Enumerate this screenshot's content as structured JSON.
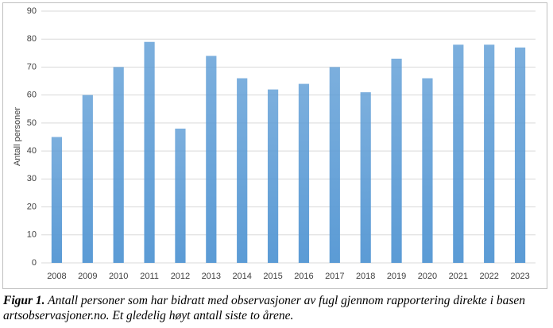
{
  "chart_data": {
    "type": "bar",
    "y_label": "Antall personer",
    "categories": [
      "2008",
      "2009",
      "2010",
      "2011",
      "2012",
      "2013",
      "2014",
      "2015",
      "2016",
      "2017",
      "2018",
      "2019",
      "2020",
      "2021",
      "2022",
      "2023"
    ],
    "values": [
      45,
      60,
      70,
      79,
      48,
      74,
      66,
      62,
      64,
      70,
      61,
      73,
      66,
      78,
      78,
      77
    ],
    "color": "#5b9bd5",
    "ylim": [
      0,
      90
    ],
    "yticks": [
      0,
      10,
      20,
      30,
      40,
      50,
      60,
      70,
      80,
      90
    ],
    "grid": true
  },
  "caption": {
    "label": "Figur 1.",
    "text": "Antall personer som har bidratt med observasjoner av fugl gjennom rapportering direkte i basen artsobservasjoner.no. Et gledelig høyt antall siste to årene."
  }
}
